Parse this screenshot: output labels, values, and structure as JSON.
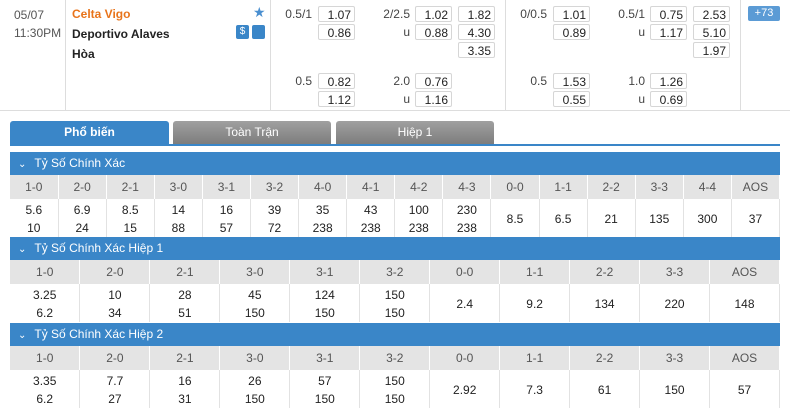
{
  "match": {
    "date": "05/07",
    "time": "11:30PM",
    "home": "Celta Vigo",
    "away": "Deportivo Alaves",
    "draw": "Hòa",
    "more": "+73",
    "full": {
      "handicap": {
        "line": "0.5/1",
        "home": "1.07",
        "away": "0.86"
      },
      "total": {
        "line": "2/2.5",
        "over": "1.02",
        "under_label": "u",
        "under": "0.88"
      },
      "x12": {
        "home": "1.82",
        "away": "4.30",
        "draw": "3.35"
      },
      "handicap2": {
        "line": "0.5",
        "home": "0.82",
        "away": "1.12"
      },
      "total2": {
        "line": "2.0",
        "over": "0.76",
        "under_label": "u",
        "under": "1.16"
      }
    },
    "half": {
      "handicap": {
        "line": "0/0.5",
        "home": "1.01",
        "away": "0.89"
      },
      "total": {
        "line": "0.5/1",
        "over": "0.75",
        "under_label": "u",
        "under": "1.17"
      },
      "x12": {
        "home": "2.53",
        "away": "5.10",
        "draw": "1.97"
      },
      "handicap2": {
        "line": "0.5",
        "home": "1.53",
        "away": "0.55"
      },
      "total2": {
        "line": "1.0",
        "over": "1.26",
        "under_label": "u",
        "under": "0.69"
      }
    }
  },
  "tabs": [
    "Phổ biến",
    "Toàn Trận",
    "Hiệp 1"
  ],
  "sections": [
    {
      "title": "Tỷ Số Chính Xác",
      "cells": [
        {
          "header": "1-0",
          "values": [
            "5.6",
            "10"
          ]
        },
        {
          "header": "2-0",
          "values": [
            "6.9",
            "24"
          ]
        },
        {
          "header": "2-1",
          "values": [
            "8.5",
            "15"
          ]
        },
        {
          "header": "3-0",
          "values": [
            "14",
            "88"
          ]
        },
        {
          "header": "3-1",
          "values": [
            "16",
            "57"
          ]
        },
        {
          "header": "3-2",
          "values": [
            "39",
            "72"
          ]
        },
        {
          "header": "4-0",
          "values": [
            "35",
            "238"
          ]
        },
        {
          "header": "4-1",
          "values": [
            "43",
            "238"
          ]
        },
        {
          "header": "4-2",
          "values": [
            "100",
            "238"
          ]
        },
        {
          "header": "4-3",
          "values": [
            "230",
            "238"
          ]
        },
        {
          "header": "0-0",
          "values": [
            "8.5"
          ]
        },
        {
          "header": "1-1",
          "values": [
            "6.5"
          ]
        },
        {
          "header": "2-2",
          "values": [
            "21"
          ]
        },
        {
          "header": "3-3",
          "values": [
            "135"
          ]
        },
        {
          "header": "4-4",
          "values": [
            "300"
          ]
        },
        {
          "header": "AOS",
          "values": [
            "37"
          ]
        }
      ]
    },
    {
      "title": "Tỷ Số Chính Xác Hiệp 1",
      "cells": [
        {
          "header": "1-0",
          "values": [
            "3.25",
            "6.2"
          ]
        },
        {
          "header": "2-0",
          "values": [
            "10",
            "34"
          ]
        },
        {
          "header": "2-1",
          "values": [
            "28",
            "51"
          ]
        },
        {
          "header": "3-0",
          "values": [
            "45",
            "150"
          ]
        },
        {
          "header": "3-1",
          "values": [
            "124",
            "150"
          ]
        },
        {
          "header": "3-2",
          "values": [
            "150",
            "150"
          ]
        },
        {
          "header": "0-0",
          "values": [
            "2.4"
          ]
        },
        {
          "header": "1-1",
          "values": [
            "9.2"
          ]
        },
        {
          "header": "2-2",
          "values": [
            "134"
          ]
        },
        {
          "header": "3-3",
          "values": [
            "220"
          ]
        },
        {
          "header": "AOS",
          "values": [
            "148"
          ]
        }
      ]
    },
    {
      "title": "Tỷ Số Chính Xác Hiệp 2",
      "cells": [
        {
          "header": "1-0",
          "values": [
            "3.35",
            "6.2"
          ]
        },
        {
          "header": "2-0",
          "values": [
            "7.7",
            "27"
          ]
        },
        {
          "header": "2-1",
          "values": [
            "16",
            "31"
          ]
        },
        {
          "header": "3-0",
          "values": [
            "26",
            "150"
          ]
        },
        {
          "header": "3-1",
          "values": [
            "57",
            "150"
          ]
        },
        {
          "header": "3-2",
          "values": [
            "150",
            "150"
          ]
        },
        {
          "header": "0-0",
          "values": [
            "2.92"
          ]
        },
        {
          "header": "1-1",
          "values": [
            "7.3"
          ]
        },
        {
          "header": "2-2",
          "values": [
            "61"
          ]
        },
        {
          "header": "3-3",
          "values": [
            "150"
          ]
        },
        {
          "header": "AOS",
          "values": [
            "57"
          ]
        }
      ]
    }
  ]
}
